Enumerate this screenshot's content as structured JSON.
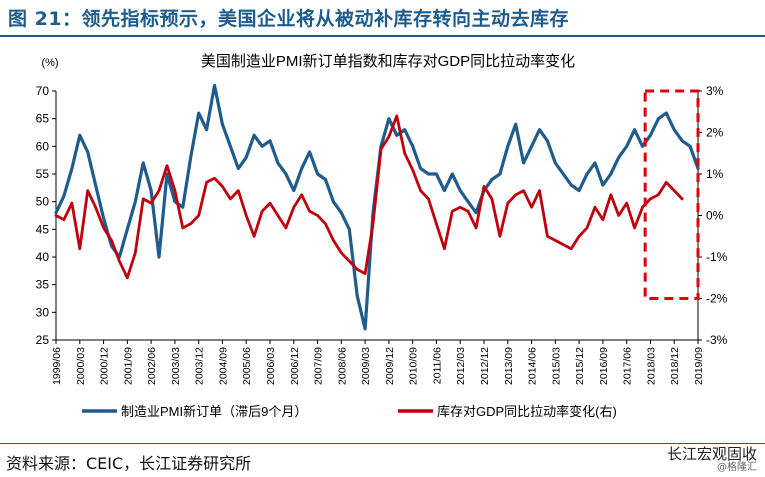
{
  "figure_title": "图 21：领先指标预示，美国企业将从被动补库存转向主动去库存",
  "source": "资料来源：CEIC，长江证券研究所",
  "watermark": {
    "main": "长江宏观固收",
    "sub": "@格隆汇"
  },
  "colors": {
    "title": "#1f5c8e",
    "series_pmi": "#1f5c8e",
    "series_inventory": "#c0000c",
    "highlight_box": "#e0000c"
  },
  "chart_data": {
    "type": "line",
    "title": "美国制造业PMI新订单指数和库存对GDP同比拉动率变化",
    "left_axis_unit": "(%)",
    "ylim_left": [
      25,
      70
    ],
    "yticks_left": [
      25,
      30,
      35,
      40,
      45,
      50,
      55,
      60,
      65,
      70
    ],
    "ylim_right": [
      -3,
      3
    ],
    "yticks_right": [
      "-3%",
      "-2%",
      "-1%",
      "0%",
      "1%",
      "2%",
      "3%"
    ],
    "yticks_right_values": [
      -3,
      -2,
      -1,
      0,
      1,
      2,
      3
    ],
    "x_range": [
      "1999-06",
      "2019-09"
    ],
    "x_tick_labels": [
      "1999/06",
      "2000/03",
      "2000/12",
      "2001/09",
      "2002/06",
      "2003/03",
      "2003/12",
      "2004/09",
      "2005/06",
      "2006/03",
      "2006/12",
      "2007/09",
      "2008/06",
      "2009/03",
      "2009/12",
      "2010/09",
      "2011/06",
      "2012/03",
      "2012/12",
      "2013/09",
      "2014/06",
      "2015/03",
      "2015/12",
      "2016/09",
      "2017/06",
      "2018/03",
      "2018/12",
      "2019/09"
    ],
    "grid": false,
    "legend_position": "bottom",
    "highlight_region": {
      "x": [
        "2018-01",
        "2019-09"
      ],
      "y_right": [
        -2,
        3
      ]
    },
    "series": [
      {
        "name": "制造业PMI新订单（滞后9个月）",
        "axis": "left",
        "x": [
          "1999-06",
          "1999-09",
          "1999-12",
          "2000-03",
          "2000-06",
          "2000-09",
          "2000-12",
          "2001-03",
          "2001-06",
          "2001-09",
          "2001-12",
          "2002-03",
          "2002-06",
          "2002-09",
          "2002-12",
          "2003-03",
          "2003-06",
          "2003-09",
          "2003-12",
          "2004-03",
          "2004-06",
          "2004-09",
          "2004-12",
          "2005-03",
          "2005-06",
          "2005-09",
          "2005-12",
          "2006-03",
          "2006-06",
          "2006-09",
          "2006-12",
          "2007-03",
          "2007-06",
          "2007-09",
          "2007-12",
          "2008-03",
          "2008-06",
          "2008-09",
          "2008-12",
          "2009-03",
          "2009-06",
          "2009-09",
          "2009-12",
          "2010-03",
          "2010-06",
          "2010-09",
          "2010-12",
          "2011-03",
          "2011-06",
          "2011-09",
          "2011-12",
          "2012-03",
          "2012-06",
          "2012-09",
          "2012-12",
          "2013-03",
          "2013-06",
          "2013-09",
          "2013-12",
          "2014-03",
          "2014-06",
          "2014-09",
          "2014-12",
          "2015-03",
          "2015-06",
          "2015-09",
          "2015-12",
          "2016-03",
          "2016-06",
          "2016-09",
          "2016-12",
          "2017-03",
          "2017-06",
          "2017-09",
          "2017-12",
          "2018-03",
          "2018-06",
          "2018-09",
          "2018-12",
          "2019-03",
          "2019-06",
          "2019-09"
        ],
        "values": [
          48,
          51,
          56,
          62,
          59,
          53,
          47,
          42,
          40,
          45,
          50,
          57,
          52,
          40,
          55,
          50,
          49,
          58,
          66,
          63,
          71,
          64,
          60,
          56,
          58,
          62,
          60,
          61,
          57,
          55,
          52,
          56,
          59,
          55,
          54,
          50,
          48,
          45,
          33,
          27,
          48,
          60,
          65,
          62,
          63,
          60,
          56,
          55,
          55,
          52,
          55,
          52,
          50,
          48,
          52,
          54,
          55,
          60,
          64,
          57,
          60,
          63,
          61,
          57,
          55,
          53,
          52,
          55,
          57,
          53,
          55,
          58,
          60,
          63,
          60,
          62,
          65,
          66,
          63,
          61,
          60,
          56
        ]
      },
      {
        "name": "库存对GDP同比拉动率变化(右)",
        "axis": "right",
        "x": [
          "1999-06",
          "1999-09",
          "1999-12",
          "2000-03",
          "2000-06",
          "2000-09",
          "2000-12",
          "2001-03",
          "2001-06",
          "2001-09",
          "2001-12",
          "2002-03",
          "2002-06",
          "2002-09",
          "2002-12",
          "2003-03",
          "2003-06",
          "2003-09",
          "2003-12",
          "2004-03",
          "2004-06",
          "2004-09",
          "2004-12",
          "2005-03",
          "2005-06",
          "2005-09",
          "2005-12",
          "2006-03",
          "2006-06",
          "2006-09",
          "2006-12",
          "2007-03",
          "2007-06",
          "2007-09",
          "2007-12",
          "2008-03",
          "2008-06",
          "2008-09",
          "2008-12",
          "2009-03",
          "2009-06",
          "2009-09",
          "2009-12",
          "2010-03",
          "2010-06",
          "2010-09",
          "2010-12",
          "2011-03",
          "2011-06",
          "2011-09",
          "2011-12",
          "2012-03",
          "2012-06",
          "2012-09",
          "2012-12",
          "2013-03",
          "2013-06",
          "2013-09",
          "2013-12",
          "2014-03",
          "2014-06",
          "2014-09",
          "2014-12",
          "2015-03",
          "2015-06",
          "2015-09",
          "2015-12",
          "2016-03",
          "2016-06",
          "2016-09",
          "2016-12",
          "2017-03",
          "2017-06",
          "2017-09",
          "2017-12",
          "2018-03",
          "2018-06",
          "2018-09",
          "2018-12",
          "2019-03"
        ],
        "values": [
          0.0,
          -0.1,
          0.3,
          -0.8,
          0.6,
          0.2,
          -0.3,
          -0.6,
          -1.1,
          -1.5,
          -0.9,
          0.4,
          0.3,
          0.6,
          1.2,
          0.6,
          -0.3,
          -0.2,
          0.0,
          0.8,
          0.9,
          0.7,
          0.4,
          0.6,
          0.0,
          -0.5,
          0.1,
          0.3,
          0.0,
          -0.3,
          0.2,
          0.5,
          0.1,
          0.0,
          -0.2,
          -0.6,
          -0.9,
          -1.1,
          -1.3,
          -1.4,
          -0.2,
          1.6,
          1.9,
          2.4,
          1.5,
          1.1,
          0.6,
          0.4,
          -0.2,
          -0.8,
          0.1,
          0.2,
          0.1,
          -0.3,
          0.7,
          0.4,
          -0.5,
          0.3,
          0.5,
          0.6,
          0.2,
          0.6,
          -0.5,
          -0.6,
          -0.7,
          -0.8,
          -0.5,
          -0.3,
          0.2,
          -0.1,
          0.5,
          0.0,
          0.3,
          -0.3,
          0.2,
          0.4,
          0.5,
          0.8,
          0.6,
          0.4
        ]
      }
    ]
  }
}
